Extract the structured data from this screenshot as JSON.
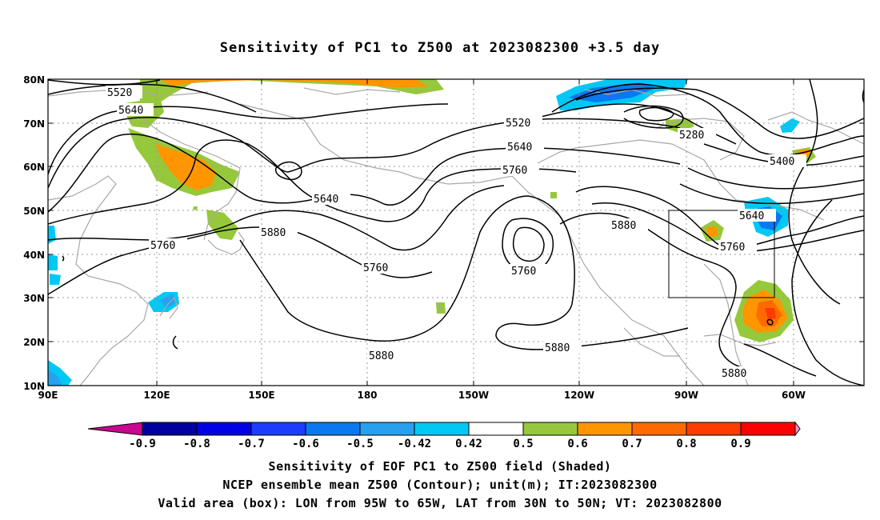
{
  "title": "Sensitivity of PC1 to Z500 at 2023082300 +3.5 day",
  "map": {
    "lat_ticks": [
      "80N",
      "70N",
      "60N",
      "50N",
      "40N",
      "30N",
      "20N",
      "10N"
    ],
    "lon_ticks": [
      "90E",
      "120E",
      "150E",
      "180",
      "150W",
      "120W",
      "90W",
      "60W"
    ],
    "contour_labels": [
      {
        "id": "c1",
        "text": "5520"
      },
      {
        "id": "c2",
        "text": "5640"
      },
      {
        "id": "c3",
        "text": "5520"
      },
      {
        "id": "c4",
        "text": "5640"
      },
      {
        "id": "c5",
        "text": "5760"
      },
      {
        "id": "c6",
        "text": "5280"
      },
      {
        "id": "c7",
        "text": "5400"
      },
      {
        "id": "c8",
        "text": "5640"
      },
      {
        "id": "c9",
        "text": "5640"
      },
      {
        "id": "c10",
        "text": "5760"
      },
      {
        "id": "c11",
        "text": "5880"
      },
      {
        "id": "c12",
        "text": "5760"
      },
      {
        "id": "c13",
        "text": "5760"
      },
      {
        "id": "c14",
        "text": "5880"
      },
      {
        "id": "c15",
        "text": "5760"
      },
      {
        "id": "c16",
        "text": "5880"
      },
      {
        "id": "c17",
        "text": "5880"
      },
      {
        "id": "c18",
        "text": "5880"
      }
    ],
    "valid_box": {
      "lon_west": "95W",
      "lon_east": "65W",
      "lat_south": "30N",
      "lat_north": "50N"
    }
  },
  "colorbar": {
    "labels": [
      "-0.9",
      "-0.8",
      "-0.7",
      "-0.6",
      "-0.5",
      "-0.42",
      "0.42",
      "0.5",
      "0.6",
      "0.7",
      "0.8",
      "0.9"
    ],
    "colors": [
      "#c8088f",
      "#0000a0",
      "#0000e6",
      "#1e3cff",
      "#0a78f0",
      "#28a0f0",
      "#00c8f5",
      "#ffffff",
      "#96c83c",
      "#ff9600",
      "#ff6a00",
      "#ff3c00",
      "#ff0000",
      "#f59bc8"
    ]
  },
  "captions": {
    "line1": "Sensitivity of EOF PC1 to Z500 field (Shaded)",
    "line2": "NCEP ensemble mean Z500 (Contour); unit(m); IT:2023082300",
    "line3": "Valid area (box): LON from 95W to 65W, LAT from 30N to 50N; VT: 2023082800"
  }
}
